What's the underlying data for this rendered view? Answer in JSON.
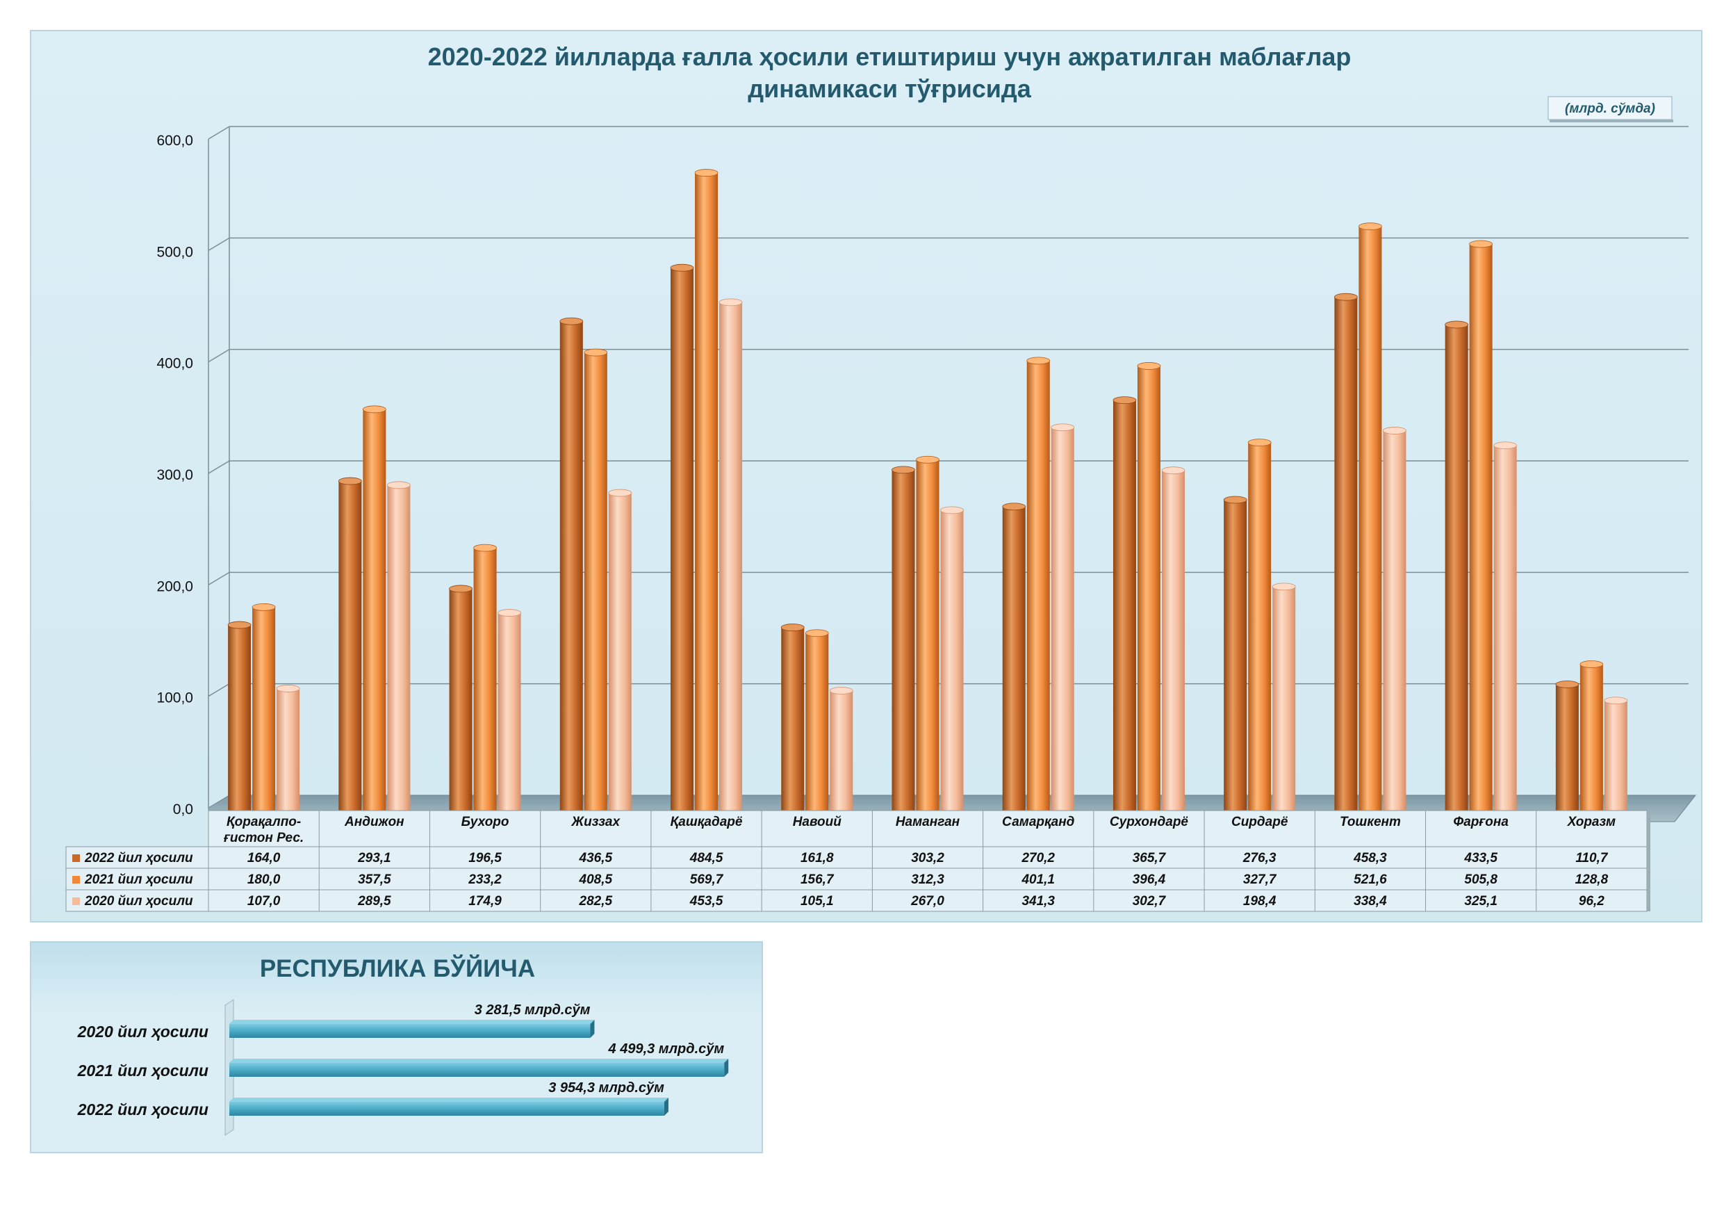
{
  "chart_data": [
    {
      "type": "bar",
      "title": "2020-2022 йилларда ғалла ҳосили етиштириш учун ажратилган маблағлар",
      "title_line2": "динамикаси тўғрисида",
      "unit": "(млрд. сўмда)",
      "categories": [
        [
          "Қорақалпо-",
          "ғистон Рес."
        ],
        [
          "Андижон"
        ],
        [
          "Бухоро"
        ],
        [
          "Жиззах"
        ],
        [
          "Қашқадарё"
        ],
        [
          "Навоий"
        ],
        [
          "Наманган"
        ],
        [
          "Самарқанд"
        ],
        [
          "Сурхондарё"
        ],
        [
          "Сирдарё"
        ],
        [
          "Тошкент"
        ],
        [
          "Фарғона"
        ],
        [
          "Хоразм"
        ]
      ],
      "series": [
        {
          "name": "2022 йил ҳосили",
          "values": [
            164.0,
            293.1,
            196.5,
            436.5,
            484.5,
            161.8,
            303.2,
            270.2,
            365.7,
            276.3,
            458.3,
            433.5,
            110.7
          ],
          "labels": [
            "164,0",
            "293,1",
            "196,5",
            "436,5",
            "484,5",
            "161,8",
            "303,2",
            "270,2",
            "365,7",
            "276,3",
            "458,3",
            "433,5",
            "110,7"
          ],
          "color": "#C8692A",
          "color_light": "#E89A5C",
          "color_dark": "#8E4514"
        },
        {
          "name": "2021 йил ҳосили",
          "values": [
            180.0,
            357.5,
            233.2,
            408.5,
            569.7,
            156.7,
            312.3,
            401.1,
            396.4,
            327.7,
            521.6,
            505.8,
            128.8
          ],
          "labels": [
            "180,0",
            "357,5",
            "233,2",
            "408,5",
            "569,7",
            "156,7",
            "312,3",
            "401,1",
            "396,4",
            "327,7",
            "521,6",
            "505,8",
            "128,8"
          ],
          "color": "#F08A3A",
          "color_light": "#FFB877",
          "color_dark": "#B55A18"
        },
        {
          "name": "2020 йил ҳосили",
          "values": [
            107.0,
            289.5,
            174.9,
            282.5,
            453.5,
            105.1,
            267.0,
            341.3,
            302.7,
            198.4,
            338.4,
            325.1,
            96.2
          ],
          "labels": [
            "107,0",
            "289,5",
            "174,9",
            "282,5",
            "453,5",
            "105,1",
            "267,0",
            "341,3",
            "302,7",
            "198,4",
            "338,4",
            "325,1",
            "96,2"
          ],
          "color": "#F5BC9B",
          "color_light": "#FCDCC8",
          "color_dark": "#D68F6A"
        }
      ],
      "ylim": [
        0,
        600
      ],
      "yticks": [
        "0,0",
        "100,0",
        "200,0",
        "300,0",
        "400,0",
        "500,0",
        "600,0"
      ],
      "grid": true,
      "legend": "data-table"
    },
    {
      "type": "bar",
      "orientation": "horizontal",
      "title": "РЕСПУБЛИКА БЎЙИЧА",
      "categories": [
        "2020 йил ҳосили",
        "2021 йил ҳосили",
        "2022 йил ҳосили"
      ],
      "values": [
        3281.5,
        4499.3,
        3954.3
      ],
      "labels": [
        "3 281,5 млрд.сўм",
        "4 499,3 млрд.сўм",
        "3 954,3 млрд.сўм"
      ],
      "xlim": [
        0,
        4700
      ],
      "bar_color": "#4BAAC6"
    }
  ]
}
